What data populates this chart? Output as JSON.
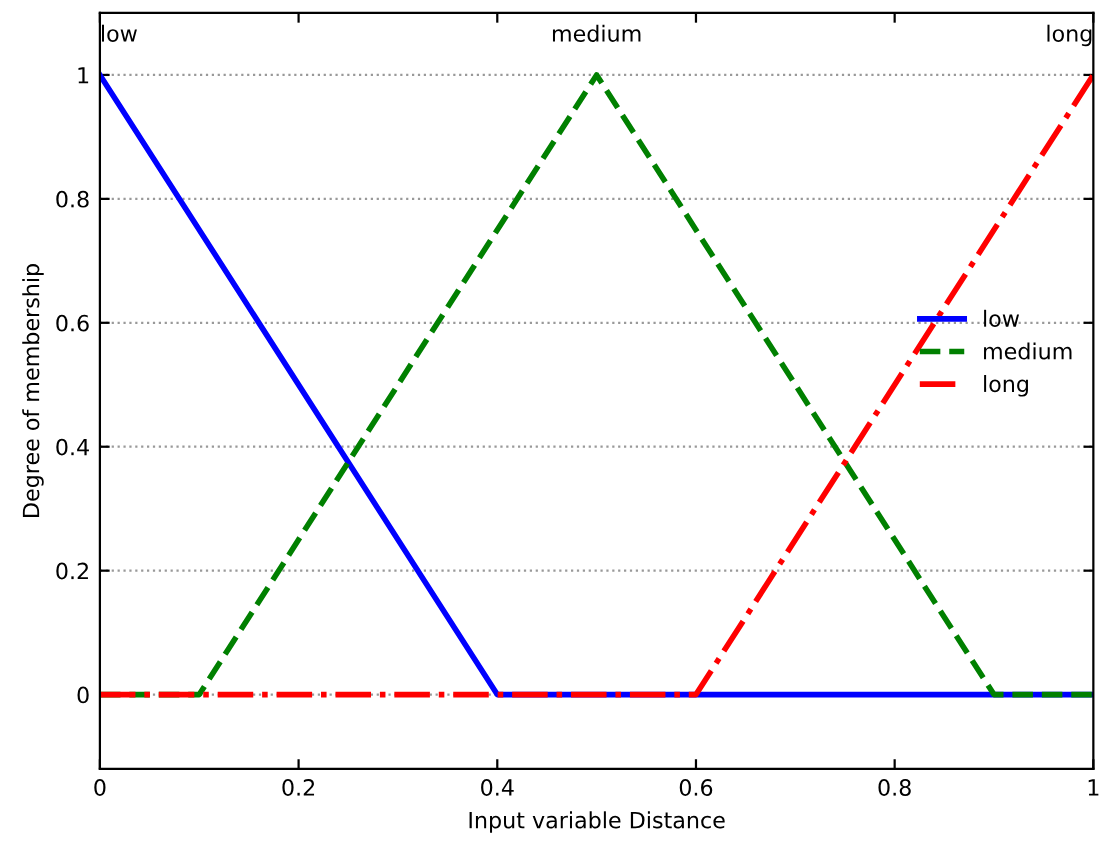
{
  "chart_data": {
    "type": "line",
    "xlabel": "Input variable Distance",
    "ylabel": "Degree of membership",
    "xlim": [
      0,
      1
    ],
    "xticks": [
      0,
      0.2,
      0.4,
      0.6,
      0.8,
      1
    ],
    "ylim": [
      -0.12,
      1.1
    ],
    "yticks": [
      0,
      0.2,
      0.4,
      0.6,
      0.8,
      1
    ],
    "grid": "y",
    "legend": "right",
    "marker": "none",
    "series": [
      {
        "name": "low",
        "color": "#0000ff",
        "line_style": "solid",
        "x": [
          0,
          0.4,
          1
        ],
        "values": [
          1,
          0,
          0
        ]
      },
      {
        "name": "medium",
        "color": "#008000",
        "line_style": "dashed",
        "x": [
          0,
          0.1,
          0.5,
          0.9,
          1
        ],
        "values": [
          0,
          0,
          1,
          0,
          0
        ]
      },
      {
        "name": "long",
        "color": "#ff0000",
        "line_style": "dashdot",
        "x": [
          0,
          0.6,
          1
        ],
        "values": [
          0,
          0,
          1
        ]
      }
    ],
    "annotations": [
      {
        "text": "low",
        "x": 0,
        "y": 1
      },
      {
        "text": "medium",
        "x": 0.5,
        "y": 1
      },
      {
        "text": "long",
        "x": 1,
        "y": 1
      }
    ]
  }
}
